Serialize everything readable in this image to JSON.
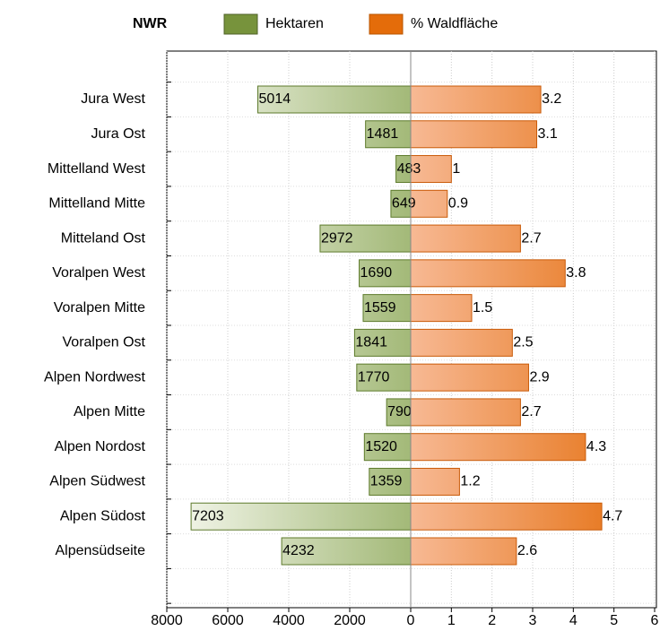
{
  "chart_data": {
    "type": "bar",
    "title": "NWR",
    "categories": [
      "Jura West",
      "Jura Ost",
      "Mittelland West",
      "Mittelland Mitte",
      "Mitteland Ost",
      "Voralpen West",
      "Voralpen Mitte",
      "Voralpen Ost",
      "Alpen Nordwest",
      "Alpen Mitte",
      "Alpen Nordost",
      "Alpen Südwest",
      "Alpen Südost",
      "Alpensüdseite"
    ],
    "series": [
      {
        "name": "Hektaren",
        "color": "#77933c",
        "values": [
          5014,
          1481,
          483,
          649,
          2972,
          1690,
          1559,
          1841,
          1770,
          790,
          1520,
          1359,
          7203,
          4232
        ]
      },
      {
        "name": "% Waldfläche",
        "color": "#e46c0a",
        "axis": "x2",
        "values": [
          3.2,
          3.1,
          1,
          0.9,
          2.7,
          3.8,
          1.5,
          2.5,
          2.9,
          2.7,
          4.3,
          1.2,
          4.7,
          2.6
        ]
      }
    ],
    "xlim": [
      8000,
      0
    ],
    "xticks": [
      8000,
      6000,
      4000,
      2000,
      0
    ],
    "x2lim": [
      0,
      6
    ],
    "x2ticks": [
      1,
      2,
      3,
      4,
      5,
      6
    ],
    "grid": true
  }
}
